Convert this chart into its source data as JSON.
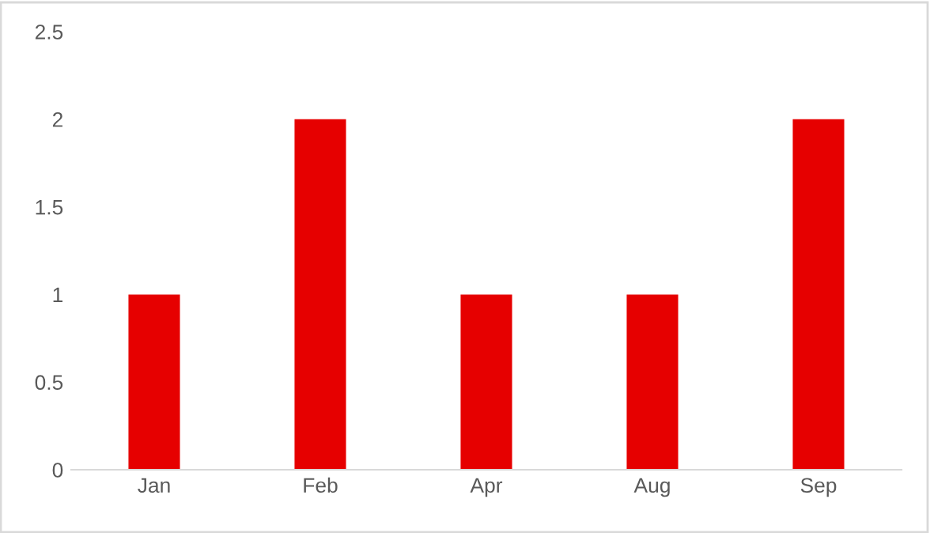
{
  "chart_data": {
    "type": "bar",
    "categories": [
      "Jan",
      "Feb",
      "Apr",
      "Aug",
      "Sep"
    ],
    "values": [
      1,
      2,
      1,
      1,
      2
    ],
    "color": "#e60000",
    "ylim": [
      0,
      2.5
    ],
    "yticks": [
      0,
      0.5,
      1,
      1.5,
      2,
      2.5
    ],
    "grid": false,
    "legend": false
  }
}
